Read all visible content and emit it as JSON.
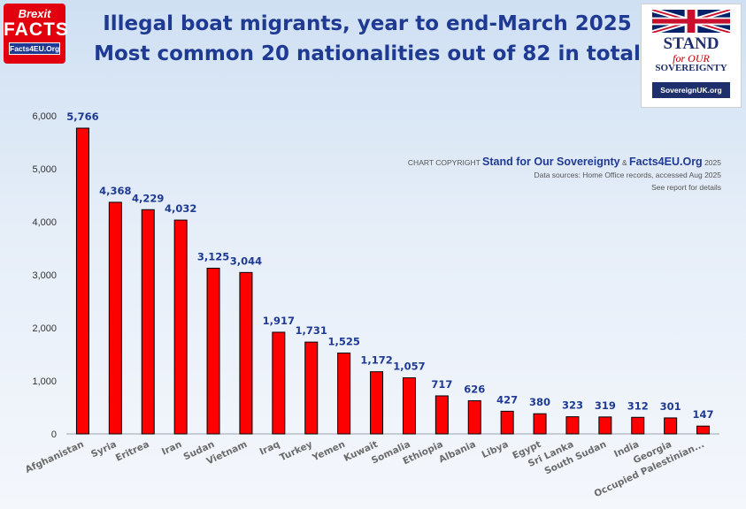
{
  "header": {
    "title_line1": "Illegal boat migrants, year to end-March 2025",
    "title_line2": "Most common 20 nationalities out of 82 in total"
  },
  "logo_left": {
    "line1": "Brexit",
    "line2": "FACTS",
    "line3": "Facts4EU.Org",
    "color": "#e2000f"
  },
  "logo_right": {
    "stand": "STAND",
    "for_our": "for OUR",
    "sovereignty": "SOVEREIGNTY",
    "url": "SovereignUK.org"
  },
  "credit": {
    "prefix": "CHART COPYRIGHT",
    "org1": "Stand for Our Sovereignty",
    "amp": "&",
    "org2": "Facts4EU.Org",
    "year": "2025",
    "sources": "Data sources: Home Office records, accessed Aug 2025",
    "note": "See report for details"
  },
  "colors": {
    "bar": "#ff0000",
    "bar_outline": "#000000",
    "title": "#1f3a93",
    "label": "#1f3a93"
  },
  "chart_data": {
    "type": "bar",
    "categories": [
      "Afghanistan",
      "Syria",
      "Eritrea",
      "Iran",
      "Sudan",
      "Vietnam",
      "Iraq",
      "Turkey",
      "Yemen",
      "Kuwait",
      "Somalia",
      "Ethiopia",
      "Albania",
      "Libya",
      "Egypt",
      "Sri Lanka",
      "South Sudan",
      "India",
      "Georgia",
      "Occupied Palestinian..."
    ],
    "values": [
      5766,
      4368,
      4229,
      4032,
      3125,
      3044,
      1917,
      1731,
      1525,
      1172,
      1057,
      717,
      626,
      427,
      380,
      323,
      319,
      312,
      301,
      147
    ],
    "value_labels": [
      "5,766",
      "4,368",
      "4,229",
      "4,032",
      "3,125",
      "3,044",
      "1,917",
      "1,731",
      "1,525",
      "1,172",
      "1,057",
      "717",
      "626",
      "427",
      "380",
      "323",
      "319",
      "312",
      "301",
      "147"
    ],
    "yticks": [
      "0",
      "1,000",
      "2,000",
      "3,000",
      "4,000",
      "5,000",
      "6,000"
    ],
    "ylim": [
      0,
      6000
    ],
    "title": "Illegal boat migrants, year to end-March 2025",
    "xlabel": "",
    "ylabel": "",
    "grid": false
  }
}
